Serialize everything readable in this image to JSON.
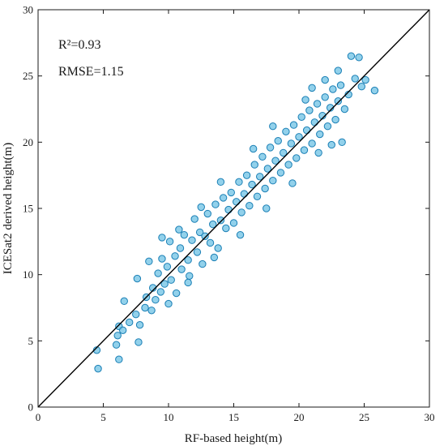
{
  "chart_data": {
    "type": "scatter",
    "title": "",
    "xlabel": "RF-based height(m)",
    "ylabel": "ICESat2 derived height(m)",
    "xlim": [
      0,
      30
    ],
    "ylim": [
      0,
      30
    ],
    "xticks": [
      0,
      5,
      10,
      15,
      20,
      25,
      30
    ],
    "yticks": [
      0,
      5,
      10,
      15,
      20,
      25,
      30
    ],
    "grid": false,
    "annotations": [
      "R²=0.93",
      "RMSE=1.15"
    ],
    "reference_line": {
      "kind": "1:1 line",
      "x": [
        0,
        30
      ],
      "y": [
        0,
        30
      ],
      "color": "#000000"
    },
    "marker": {
      "face_color": "#6ec1e4",
      "edge_color": "#1a7fb5",
      "shape": "circle"
    },
    "series": [
      {
        "name": "",
        "points": [
          [
            4.5,
            4.3
          ],
          [
            4.6,
            2.9
          ],
          [
            6.0,
            4.7
          ],
          [
            6.2,
            3.6
          ],
          [
            6.1,
            5.4
          ],
          [
            6.2,
            6.1
          ],
          [
            6.5,
            5.8
          ],
          [
            6.6,
            8.0
          ],
          [
            7.0,
            6.4
          ],
          [
            7.5,
            7.0
          ],
          [
            7.6,
            9.7
          ],
          [
            7.7,
            4.9
          ],
          [
            7.8,
            6.2
          ],
          [
            8.2,
            7.5
          ],
          [
            8.3,
            8.3
          ],
          [
            8.7,
            7.3
          ],
          [
            8.8,
            9.0
          ],
          [
            9.0,
            8.1
          ],
          [
            9.2,
            10.1
          ],
          [
            9.4,
            8.7
          ],
          [
            9.5,
            11.2
          ],
          [
            9.7,
            9.3
          ],
          [
            9.9,
            10.6
          ],
          [
            10.1,
            12.5
          ],
          [
            10.2,
            9.6
          ],
          [
            10.5,
            11.4
          ],
          [
            10.6,
            8.6
          ],
          [
            10.9,
            12.0
          ],
          [
            11.0,
            10.4
          ],
          [
            11.2,
            13.0
          ],
          [
            11.5,
            11.1
          ],
          [
            11.6,
            9.9
          ],
          [
            11.8,
            12.6
          ],
          [
            12.0,
            14.2
          ],
          [
            12.2,
            11.7
          ],
          [
            12.4,
            13.2
          ],
          [
            12.6,
            10.8
          ],
          [
            12.8,
            12.9
          ],
          [
            13.0,
            14.6
          ],
          [
            13.2,
            12.4
          ],
          [
            13.4,
            13.8
          ],
          [
            13.6,
            15.3
          ],
          [
            13.8,
            12.0
          ],
          [
            14.0,
            14.1
          ],
          [
            14.2,
            15.8
          ],
          [
            14.4,
            13.5
          ],
          [
            14.6,
            14.9
          ],
          [
            14.8,
            16.2
          ],
          [
            15.0,
            13.9
          ],
          [
            15.2,
            15.5
          ],
          [
            15.4,
            17.0
          ],
          [
            15.6,
            14.7
          ],
          [
            15.8,
            16.1
          ],
          [
            16.0,
            17.5
          ],
          [
            16.2,
            15.2
          ],
          [
            16.4,
            16.8
          ],
          [
            16.6,
            18.3
          ],
          [
            16.8,
            15.9
          ],
          [
            17.0,
            17.4
          ],
          [
            17.2,
            18.9
          ],
          [
            17.4,
            16.5
          ],
          [
            17.6,
            18.0
          ],
          [
            17.8,
            19.6
          ],
          [
            18.0,
            17.1
          ],
          [
            18.2,
            18.6
          ],
          [
            18.4,
            20.1
          ],
          [
            18.6,
            17.7
          ],
          [
            18.8,
            19.2
          ],
          [
            19.0,
            20.8
          ],
          [
            19.2,
            18.3
          ],
          [
            19.4,
            19.9
          ],
          [
            19.6,
            21.3
          ],
          [
            19.8,
            18.8
          ],
          [
            20.0,
            20.4
          ],
          [
            20.2,
            21.9
          ],
          [
            20.4,
            19.4
          ],
          [
            20.6,
            20.9
          ],
          [
            20.8,
            22.4
          ],
          [
            21.0,
            19.9
          ],
          [
            21.2,
            21.5
          ],
          [
            21.4,
            22.9
          ],
          [
            21.6,
            20.6
          ],
          [
            21.8,
            22.0
          ],
          [
            22.0,
            23.4
          ],
          [
            22.2,
            21.2
          ],
          [
            22.4,
            22.6
          ],
          [
            22.6,
            24.0
          ],
          [
            22.8,
            21.7
          ],
          [
            23.0,
            23.1
          ],
          [
            23.2,
            24.3
          ],
          [
            23.5,
            22.5
          ],
          [
            23.8,
            23.6
          ],
          [
            24.0,
            26.5
          ],
          [
            24.3,
            24.8
          ],
          [
            24.6,
            26.4
          ],
          [
            24.8,
            24.2
          ],
          [
            25.1,
            24.7
          ],
          [
            25.8,
            23.9
          ],
          [
            22.0,
            24.7
          ],
          [
            23.3,
            20.0
          ],
          [
            21.5,
            19.2
          ],
          [
            20.5,
            23.2
          ],
          [
            18.0,
            21.2
          ],
          [
            16.5,
            19.5
          ],
          [
            14.0,
            17.0
          ],
          [
            12.5,
            15.1
          ],
          [
            19.5,
            16.9
          ],
          [
            17.5,
            15.0
          ],
          [
            15.5,
            13.0
          ],
          [
            13.5,
            11.3
          ],
          [
            11.5,
            9.4
          ],
          [
            10.0,
            7.8
          ],
          [
            22.5,
            19.8
          ],
          [
            9.5,
            12.8
          ],
          [
            10.8,
            13.4
          ],
          [
            8.5,
            11.0
          ],
          [
            23.0,
            25.4
          ],
          [
            21.0,
            24.1
          ]
        ]
      }
    ]
  }
}
